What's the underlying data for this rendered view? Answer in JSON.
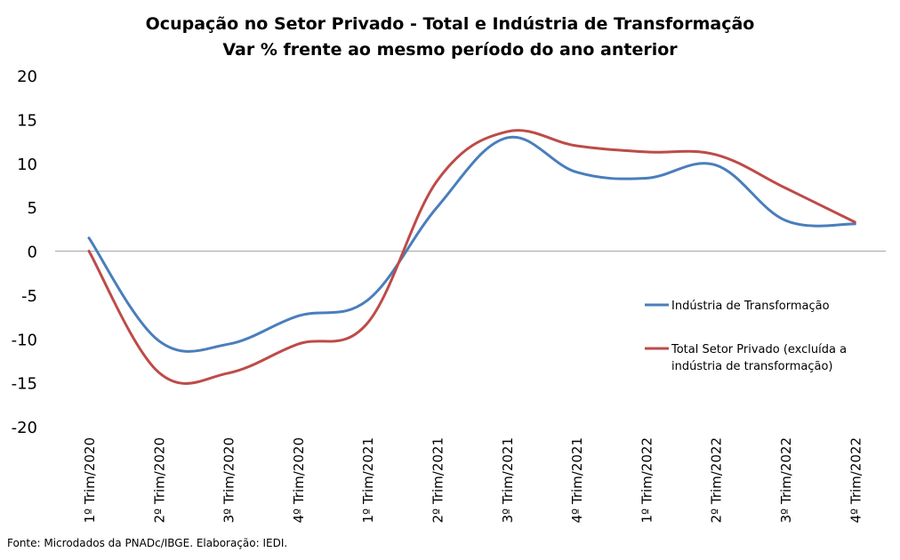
{
  "chart_data": {
    "type": "line",
    "title": "Ocupação no Setor Privado - Total e Indústria de Transformação",
    "subtitle": "Var % frente ao mesmo período do ano anterior",
    "categories": [
      "1º Trim/2020",
      "2º Trim/2020",
      "3º Trim/2020",
      "4º Trim/2020",
      "1º Trim/2021",
      "2º Trim/2021",
      "3º Trim/2021",
      "4º Trim/2021",
      "1º Trim/2022",
      "2º Trim/2022",
      "3º Trim/2022",
      "4º Trim/2022"
    ],
    "yticks": [
      "20",
      "15",
      "10",
      "5",
      "0",
      "-5",
      "-10",
      "-15",
      "-20"
    ],
    "ylim": [
      -20,
      20
    ],
    "grid": false,
    "legend_position": "right",
    "series": [
      {
        "name": "Indústria de Transformação",
        "color": "#4a7ebb",
        "values": [
          1.5,
          -10.2,
          -10.6,
          -7.4,
          -5.6,
          5.0,
          12.9,
          9.0,
          8.3,
          9.8,
          3.5,
          3.1
        ]
      },
      {
        "name": "Total Setor Privado (excluída a indústria de transformação)",
        "legend_lines": [
          "Total Setor Privado (excluída a",
          "indústria de transformação)"
        ],
        "color": "#be4b48",
        "values": [
          0.0,
          -13.8,
          -13.9,
          -10.6,
          -8.2,
          8.0,
          13.6,
          12.0,
          11.3,
          11.0,
          7.2,
          3.3
        ]
      }
    ]
  },
  "source": "Fonte: Microdados da PNADc/IBGE. Elaboração: IEDI."
}
